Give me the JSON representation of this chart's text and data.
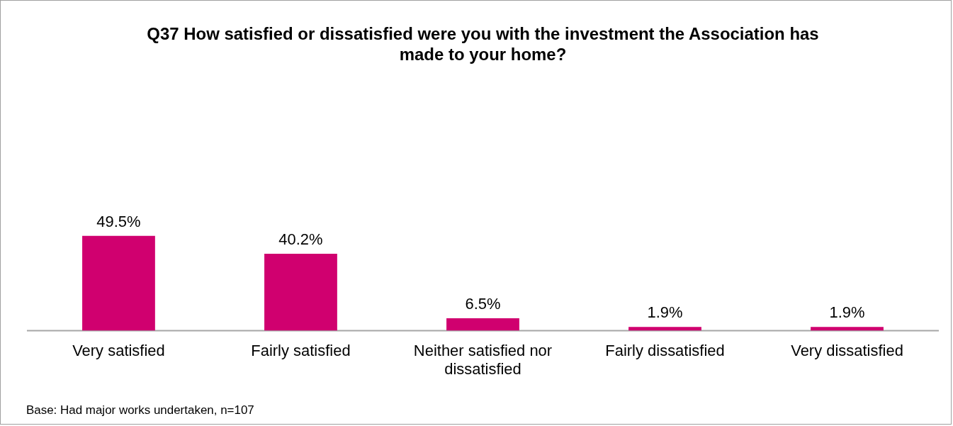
{
  "chart_data": {
    "type": "bar",
    "title": "Q37 How satisfied or dissatisfied were you with the investment the Association has made to your home?",
    "categories": [
      "Very satisfied",
      "Fairly satisfied",
      "Neither satisfied nor dissatisfied",
      "Fairly dissatisfied",
      "Very dissatisfied"
    ],
    "values": [
      49.5,
      40.2,
      6.5,
      1.9,
      1.9
    ],
    "value_labels": [
      "49.5%",
      "40.2%",
      "6.5%",
      "1.9%",
      "1.9%"
    ],
    "color": "#d0006f",
    "grid": false,
    "legend": false,
    "annotations": [
      "Base: Had major works undertaken, n=107"
    ]
  }
}
